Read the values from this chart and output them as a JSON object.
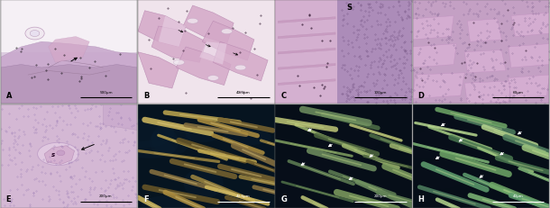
{
  "panels": [
    "A",
    "B",
    "C",
    "D",
    "E",
    "F",
    "G",
    "H"
  ],
  "panel_A": {
    "bg": "#dccce0",
    "scale": "500μm"
  },
  "panel_B": {
    "bg": "#e8d4e0",
    "scale": "40.5μm"
  },
  "panel_C": {
    "bg": "#c8a8c8",
    "scale": "100μm"
  },
  "panel_D": {
    "bg": "#c8a4c4",
    "scale": "60μm"
  },
  "panel_E": {
    "bg": "#d8c0d8",
    "scale": "200μm"
  },
  "panel_F": {
    "bg": "#061420",
    "scale": "40.5μm"
  },
  "panel_G": {
    "bg": "#060e18",
    "scale": "200μm"
  },
  "panel_H": {
    "bg": "#060e18",
    "scale": "40μm"
  },
  "figure_bg": "#c8c8c8",
  "label_fontsize": 6,
  "scale_fontsize": 3
}
